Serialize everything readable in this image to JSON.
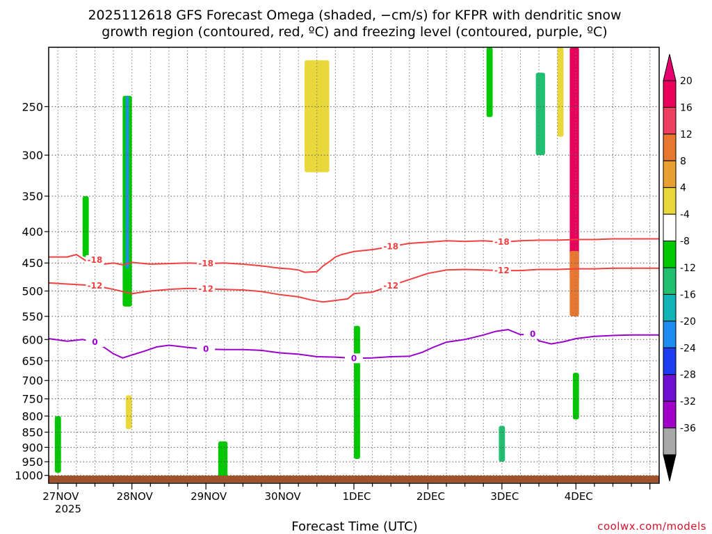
{
  "chart_data": {
    "type": "heatmap",
    "title_line1": "2025112618 GFS Forecast Omega (shaded, −cm/s) for KFPR with dendritic snow",
    "title_line2": "growth region (contoured, red, ºC) and freezing level (contoured, purple, ºC)",
    "xlabel": "Forecast Time (UTC)",
    "ylabel": "",
    "credit": "coolwx.com/models",
    "x_range_hours": [
      -3,
      195
    ],
    "x_ticks": [
      {
        "hour": 0,
        "label": "27NOV"
      },
      {
        "hour": 24,
        "label": "28NOV"
      },
      {
        "hour": 48,
        "label": "29NOV"
      },
      {
        "hour": 72,
        "label": "30NOV"
      },
      {
        "hour": 96,
        "label": "1DEC"
      },
      {
        "hour": 120,
        "label": "2DEC"
      },
      {
        "hour": 144,
        "label": "3DEC"
      },
      {
        "hour": 168,
        "label": "4DEC"
      }
    ],
    "x_year_label": "2025",
    "y_axis": {
      "units": "hPa",
      "scale": "log",
      "range": [
        1030,
        200
      ],
      "inverted": true
    },
    "y_ticks": [
      250,
      300,
      350,
      400,
      450,
      500,
      550,
      600,
      650,
      700,
      750,
      800,
      850,
      900,
      950,
      1000
    ],
    "colorbar": {
      "levels": [
        20,
        16,
        12,
        8,
        4,
        -4,
        -8,
        -12,
        -16,
        -20,
        -24,
        -28,
        -32,
        -36
      ],
      "colors": [
        "#f0c40a",
        "#e39a1c",
        "#e27c2a",
        "#f03b52",
        "#f0286e",
        "#ff1e92",
        "#ffffff",
        "#e8d83c",
        "#00c800",
        "#22c466",
        "#14b0b0",
        "#1e8cf0",
        "#1e3cf0",
        "#8000d0",
        "#a000c8",
        "#a0a0a0",
        "#000000"
      ],
      "band_colors_top_to_bottom": [
        "#e8005a",
        "#f04060",
        "#e87830",
        "#e8a030",
        "#e8d83c",
        "#ffffff",
        "#00c800",
        "#20c070",
        "#10b4b4",
        "#1e8cf0",
        "#1e3cf0",
        "#7010d0",
        "#a000c8",
        "#a8a8a8"
      ]
    },
    "contours": [
      {
        "name": "-18C",
        "label": "-18",
        "color": "#f04040",
        "points": [
          [
            -3,
            440
          ],
          [
            3,
            440
          ],
          [
            6,
            436
          ],
          [
            9,
            446
          ],
          [
            12,
            445
          ],
          [
            15,
            452
          ],
          [
            18,
            450
          ],
          [
            21,
            453
          ],
          [
            24,
            449
          ],
          [
            30,
            452
          ],
          [
            36,
            451
          ],
          [
            42,
            450
          ],
          [
            48,
            451
          ],
          [
            54,
            450
          ],
          [
            60,
            452
          ],
          [
            66,
            455
          ],
          [
            72,
            459
          ],
          [
            75,
            460
          ],
          [
            78,
            462
          ],
          [
            80,
            466
          ],
          [
            84,
            465
          ],
          [
            86,
            455
          ],
          [
            88,
            448
          ],
          [
            90,
            440
          ],
          [
            92,
            436
          ],
          [
            96,
            431
          ],
          [
            102,
            428
          ],
          [
            108,
            423
          ],
          [
            114,
            418
          ],
          [
            120,
            416
          ],
          [
            126,
            414
          ],
          [
            132,
            415
          ],
          [
            138,
            414
          ],
          [
            144,
            416
          ],
          [
            150,
            414
          ],
          [
            156,
            413
          ],
          [
            162,
            413
          ],
          [
            168,
            412
          ],
          [
            174,
            412
          ],
          [
            180,
            411
          ],
          [
            186,
            411
          ],
          [
            192,
            411
          ],
          [
            195,
            411
          ]
        ]
      },
      {
        "name": "-12C",
        "label": "-12",
        "color": "#f04040",
        "points": [
          [
            -3,
            485
          ],
          [
            6,
            488
          ],
          [
            12,
            490
          ],
          [
            18,
            497
          ],
          [
            24,
            505
          ],
          [
            30,
            500
          ],
          [
            36,
            497
          ],
          [
            42,
            495
          ],
          [
            48,
            496
          ],
          [
            54,
            497
          ],
          [
            60,
            498
          ],
          [
            66,
            501
          ],
          [
            72,
            507
          ],
          [
            78,
            511
          ],
          [
            82,
            517
          ],
          [
            86,
            521
          ],
          [
            90,
            518
          ],
          [
            94,
            515
          ],
          [
            96,
            505
          ],
          [
            102,
            502
          ],
          [
            108,
            490
          ],
          [
            114,
            479
          ],
          [
            120,
            468
          ],
          [
            126,
            462
          ],
          [
            132,
            461
          ],
          [
            138,
            462
          ],
          [
            144,
            463
          ],
          [
            150,
            463
          ],
          [
            156,
            461
          ],
          [
            162,
            461
          ],
          [
            168,
            460
          ],
          [
            174,
            460
          ],
          [
            180,
            459
          ],
          [
            186,
            459
          ],
          [
            192,
            459
          ],
          [
            195,
            459
          ]
        ]
      },
      {
        "name": "0C",
        "label": "0",
        "color": "#9900cc",
        "points": [
          [
            -3,
            598
          ],
          [
            3,
            604
          ],
          [
            8,
            600
          ],
          [
            12,
            606
          ],
          [
            15,
            618
          ],
          [
            18,
            633
          ],
          [
            21,
            643
          ],
          [
            24,
            636
          ],
          [
            28,
            627
          ],
          [
            32,
            617
          ],
          [
            36,
            613
          ],
          [
            42,
            618
          ],
          [
            48,
            622
          ],
          [
            54,
            623
          ],
          [
            60,
            623
          ],
          [
            66,
            625
          ],
          [
            72,
            631
          ],
          [
            78,
            634
          ],
          [
            84,
            640
          ],
          [
            90,
            641
          ],
          [
            96,
            644
          ],
          [
            102,
            643
          ],
          [
            108,
            640
          ],
          [
            114,
            639
          ],
          [
            118,
            630
          ],
          [
            122,
            617
          ],
          [
            126,
            606
          ],
          [
            132,
            600
          ],
          [
            138,
            590
          ],
          [
            142,
            582
          ],
          [
            146,
            578
          ],
          [
            150,
            589
          ],
          [
            154,
            588
          ],
          [
            156,
            603
          ],
          [
            160,
            610
          ],
          [
            164,
            605
          ],
          [
            168,
            598
          ],
          [
            174,
            593
          ],
          [
            180,
            591
          ],
          [
            186,
            590
          ],
          [
            192,
            590
          ],
          [
            195,
            590
          ]
        ]
      }
    ],
    "omega_features": [
      {
        "category": "-8 to -4",
        "hours": [
          -1,
          1
        ],
        "p": [
          800,
          990
        ]
      },
      {
        "category": "-8 to -4",
        "hours": [
          8,
          10
        ],
        "p": [
          350,
          440
        ]
      },
      {
        "category": "-8 to -4",
        "hours": [
          21,
          24
        ],
        "p": [
          240,
          530
        ]
      },
      {
        "category": "-20 to -16",
        "hours": [
          22,
          23
        ],
        "p": [
          240,
          460
        ]
      },
      {
        "category": "4 to 8",
        "hours": [
          22,
          24
        ],
        "p": [
          740,
          840
        ]
      },
      {
        "category": "-8 to -4",
        "hours": [
          52,
          55
        ],
        "p": [
          880,
          1010
        ]
      },
      {
        "category": "4 to 8",
        "hours": [
          80,
          88
        ],
        "p": [
          210,
          320
        ]
      },
      {
        "category": "-8 to -4",
        "hours": [
          96,
          98
        ],
        "p": [
          570,
          940
        ]
      },
      {
        "category": "-8 to -4",
        "hours": [
          139,
          141
        ],
        "p": [
          200,
          260
        ]
      },
      {
        "category": "-12 to -8",
        "hours": [
          155,
          158
        ],
        "p": [
          220,
          300
        ]
      },
      {
        "category": "4 to 8",
        "hours": [
          162,
          164
        ],
        "p": [
          200,
          280
        ]
      },
      {
        "category": "20+",
        "hours": [
          166,
          169
        ],
        "p": [
          200,
          480
        ]
      },
      {
        "category": "12 to 16",
        "hours": [
          166,
          169
        ],
        "p": [
          430,
          550
        ]
      },
      {
        "category": "-8 to -4",
        "hours": [
          167,
          169
        ],
        "p": [
          680,
          810
        ]
      },
      {
        "category": "-12 to -8",
        "hours": [
          143,
          145
        ],
        "p": [
          830,
          950
        ]
      }
    ]
  }
}
